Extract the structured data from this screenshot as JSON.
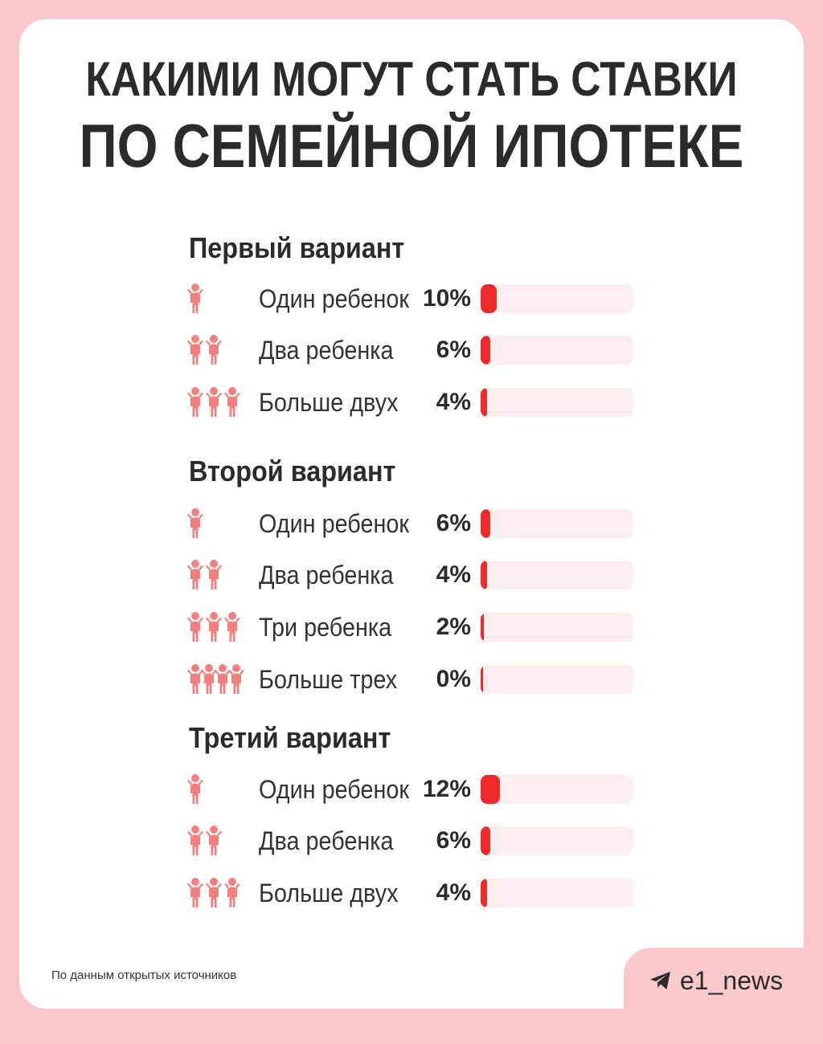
{
  "title": {
    "line1": "КАКИМИ МОГУТ СТАТЬ СТАВКИ",
    "line2": "ПО СЕМЕЙНОЙ ИПОТЕКЕ"
  },
  "chart_data": {
    "type": "bar",
    "unit": "%",
    "xlim": [
      0,
      100
    ],
    "colors": {
      "bar": "#ee2a2a",
      "track": "#fdeeee",
      "icon": "#f47f7f"
    },
    "groups": [
      {
        "title": "Первый вариант",
        "rows": [
          {
            "label": "Один ребенок",
            "value": 10,
            "value_text": "10%",
            "children": 1
          },
          {
            "label": "Два ребенка",
            "value": 6,
            "value_text": "6%",
            "children": 2
          },
          {
            "label": "Больше двух",
            "value": 4,
            "value_text": "4%",
            "children": 3
          }
        ]
      },
      {
        "title": "Второй вариант",
        "rows": [
          {
            "label": "Один ребенок",
            "value": 6,
            "value_text": "6%",
            "children": 1
          },
          {
            "label": "Два ребенка",
            "value": 4,
            "value_text": "4%",
            "children": 2
          },
          {
            "label": "Три ребенка",
            "value": 2,
            "value_text": "2%",
            "children": 3
          },
          {
            "label": "Больше трех",
            "value": 0,
            "value_text": "0%",
            "children": 4
          }
        ]
      },
      {
        "title": "Третий вариант",
        "rows": [
          {
            "label": "Один ребенок",
            "value": 12,
            "value_text": "12%",
            "children": 1
          },
          {
            "label": "Два ребенка",
            "value": 6,
            "value_text": "6%",
            "children": 2
          },
          {
            "label": "Больше двух",
            "value": 4,
            "value_text": "4%",
            "children": 3
          }
        ]
      }
    ]
  },
  "footer": {
    "source": "По данным открытых источников",
    "brand": "e1_news",
    "brand_icon": "telegram-icon"
  }
}
